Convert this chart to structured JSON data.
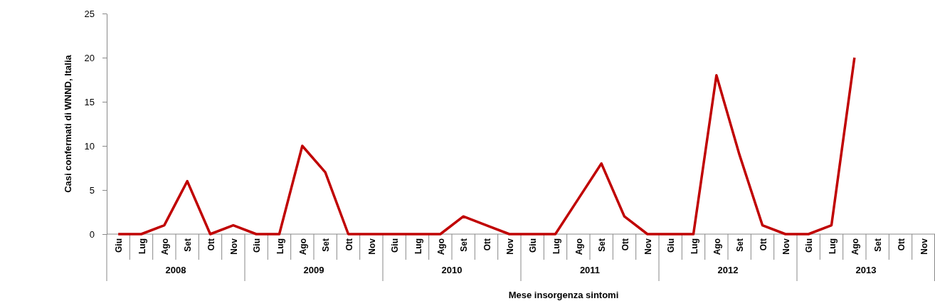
{
  "chart_data": {
    "type": "line",
    "xlabel": "Mese insorgenza sintomi",
    "ylabel": "Casi confermati di WNND, Italia",
    "categories": [
      "Giu",
      "Lug",
      "Ago",
      "Set",
      "Ott",
      "Nov",
      "Giu",
      "Lug",
      "Ago",
      "Set",
      "Ott",
      "Nov",
      "Giu",
      "Lug",
      "Ago",
      "Set",
      "Ott",
      "Nov",
      "Giu",
      "Lug",
      "Ago",
      "Set",
      "Ott",
      "Nov",
      "Giu",
      "Lug",
      "Ago",
      "Set",
      "Ott",
      "Nov",
      "Giu",
      "Lug",
      "Ago",
      "Set",
      "Ott",
      "Nov"
    ],
    "annotations": [
      "2008",
      "2009",
      "2010",
      "2011",
      "2012",
      "2013"
    ],
    "series": [
      {
        "color": "#c00000",
        "values": [
          0,
          0,
          1,
          6,
          0,
          1,
          0,
          0,
          10,
          7,
          0,
          0,
          0,
          0,
          0,
          2,
          1,
          0,
          0,
          0,
          4,
          8,
          2,
          0,
          0,
          0,
          18,
          9,
          1,
          0,
          0,
          1,
          20,
          null,
          null,
          null
        ]
      }
    ],
    "ylim": [
      0,
      25
    ],
    "yticks": [
      0,
      5,
      10,
      15,
      20,
      25
    ],
    "grid": false,
    "marker": "none",
    "line_style": "solid"
  }
}
